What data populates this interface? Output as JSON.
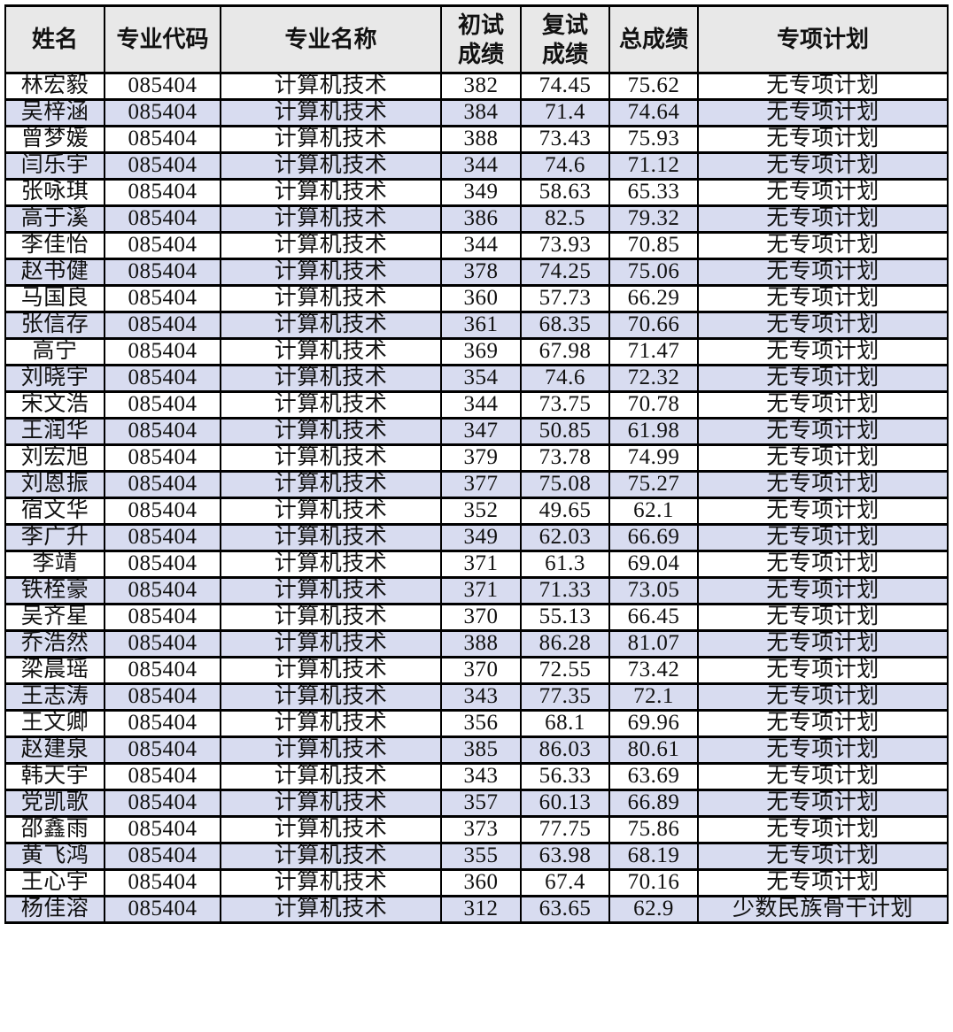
{
  "colors": {
    "header_bg": "#e8e8e8",
    "alt_row_bg": "#d8dcf0",
    "border": "#000000",
    "text": "#111111"
  },
  "table": {
    "columns": [
      {
        "key": "name",
        "label": "姓名"
      },
      {
        "key": "code",
        "label": "专业代码"
      },
      {
        "key": "major",
        "label": "专业名称"
      },
      {
        "key": "initial",
        "label": "初试\n成绩"
      },
      {
        "key": "retest",
        "label": "复试\n成绩"
      },
      {
        "key": "total",
        "label": "总成绩"
      },
      {
        "key": "plan",
        "label": "专项计划"
      }
    ],
    "rows": [
      {
        "name": "林宏毅",
        "code": "085404",
        "major": "计算机技术",
        "initial": "382",
        "retest": "74.45",
        "total": "75.62",
        "plan": "无专项计划"
      },
      {
        "name": "吴梓涵",
        "code": "085404",
        "major": "计算机技术",
        "initial": "384",
        "retest": "71.4",
        "total": "74.64",
        "plan": "无专项计划"
      },
      {
        "name": "曾梦媛",
        "code": "085404",
        "major": "计算机技术",
        "initial": "388",
        "retest": "73.43",
        "total": "75.93",
        "plan": "无专项计划"
      },
      {
        "name": "闫乐宇",
        "code": "085404",
        "major": "计算机技术",
        "initial": "344",
        "retest": "74.6",
        "total": "71.12",
        "plan": "无专项计划"
      },
      {
        "name": "张咏琪",
        "code": "085404",
        "major": "计算机技术",
        "initial": "349",
        "retest": "58.63",
        "total": "65.33",
        "plan": "无专项计划"
      },
      {
        "name": "高于溪",
        "code": "085404",
        "major": "计算机技术",
        "initial": "386",
        "retest": "82.5",
        "total": "79.32",
        "plan": "无专项计划"
      },
      {
        "name": "李佳怡",
        "code": "085404",
        "major": "计算机技术",
        "initial": "344",
        "retest": "73.93",
        "total": "70.85",
        "plan": "无专项计划"
      },
      {
        "name": "赵书健",
        "code": "085404",
        "major": "计算机技术",
        "initial": "378",
        "retest": "74.25",
        "total": "75.06",
        "plan": "无专项计划"
      },
      {
        "name": "马国良",
        "code": "085404",
        "major": "计算机技术",
        "initial": "360",
        "retest": "57.73",
        "total": "66.29",
        "plan": "无专项计划"
      },
      {
        "name": "张信存",
        "code": "085404",
        "major": "计算机技术",
        "initial": "361",
        "retest": "68.35",
        "total": "70.66",
        "plan": "无专项计划"
      },
      {
        "name": "高宁",
        "code": "085404",
        "major": "计算机技术",
        "initial": "369",
        "retest": "67.98",
        "total": "71.47",
        "plan": "无专项计划"
      },
      {
        "name": "刘晓宇",
        "code": "085404",
        "major": "计算机技术",
        "initial": "354",
        "retest": "74.6",
        "total": "72.32",
        "plan": "无专项计划"
      },
      {
        "name": "宋文浩",
        "code": "085404",
        "major": "计算机技术",
        "initial": "344",
        "retest": "73.75",
        "total": "70.78",
        "plan": "无专项计划"
      },
      {
        "name": "王润华",
        "code": "085404",
        "major": "计算机技术",
        "initial": "347",
        "retest": "50.85",
        "total": "61.98",
        "plan": "无专项计划"
      },
      {
        "name": "刘宏旭",
        "code": "085404",
        "major": "计算机技术",
        "initial": "379",
        "retest": "73.78",
        "total": "74.99",
        "plan": "无专项计划"
      },
      {
        "name": "刘恩振",
        "code": "085404",
        "major": "计算机技术",
        "initial": "377",
        "retest": "75.08",
        "total": "75.27",
        "plan": "无专项计划"
      },
      {
        "name": "宿文华",
        "code": "085404",
        "major": "计算机技术",
        "initial": "352",
        "retest": "49.65",
        "total": "62.1",
        "plan": "无专项计划"
      },
      {
        "name": "李广升",
        "code": "085404",
        "major": "计算机技术",
        "initial": "349",
        "retest": "62.03",
        "total": "66.69",
        "plan": "无专项计划"
      },
      {
        "name": "李靖",
        "code": "085404",
        "major": "计算机技术",
        "initial": "371",
        "retest": "61.3",
        "total": "69.04",
        "plan": "无专项计划"
      },
      {
        "name": "铁桎豪",
        "code": "085404",
        "major": "计算机技术",
        "initial": "371",
        "retest": "71.33",
        "total": "73.05",
        "plan": "无专项计划"
      },
      {
        "name": "吴齐星",
        "code": "085404",
        "major": "计算机技术",
        "initial": "370",
        "retest": "55.13",
        "total": "66.45",
        "plan": "无专项计划"
      },
      {
        "name": "乔浩然",
        "code": "085404",
        "major": "计算机技术",
        "initial": "388",
        "retest": "86.28",
        "total": "81.07",
        "plan": "无专项计划"
      },
      {
        "name": "梁晨瑶",
        "code": "085404",
        "major": "计算机技术",
        "initial": "370",
        "retest": "72.55",
        "total": "73.42",
        "plan": "无专项计划"
      },
      {
        "name": "王志涛",
        "code": "085404",
        "major": "计算机技术",
        "initial": "343",
        "retest": "77.35",
        "total": "72.1",
        "plan": "无专项计划"
      },
      {
        "name": "王文卿",
        "code": "085404",
        "major": "计算机技术",
        "initial": "356",
        "retest": "68.1",
        "total": "69.96",
        "plan": "无专项计划"
      },
      {
        "name": "赵建泉",
        "code": "085404",
        "major": "计算机技术",
        "initial": "385",
        "retest": "86.03",
        "total": "80.61",
        "plan": "无专项计划"
      },
      {
        "name": "韩天宇",
        "code": "085404",
        "major": "计算机技术",
        "initial": "343",
        "retest": "56.33",
        "total": "63.69",
        "plan": "无专项计划"
      },
      {
        "name": "党凯歌",
        "code": "085404",
        "major": "计算机技术",
        "initial": "357",
        "retest": "60.13",
        "total": "66.89",
        "plan": "无专项计划"
      },
      {
        "name": "邵鑫雨",
        "code": "085404",
        "major": "计算机技术",
        "initial": "373",
        "retest": "77.75",
        "total": "75.86",
        "plan": "无专项计划"
      },
      {
        "name": "黄飞鸿",
        "code": "085404",
        "major": "计算机技术",
        "initial": "355",
        "retest": "63.98",
        "total": "68.19",
        "plan": "无专项计划"
      },
      {
        "name": "王心宇",
        "code": "085404",
        "major": "计算机技术",
        "initial": "360",
        "retest": "67.4",
        "total": "70.16",
        "plan": "无专项计划"
      },
      {
        "name": "杨佳溶",
        "code": "085404",
        "major": "计算机技术",
        "initial": "312",
        "retest": "63.65",
        "total": "62.9",
        "plan": "少数民族骨干计划"
      }
    ]
  }
}
